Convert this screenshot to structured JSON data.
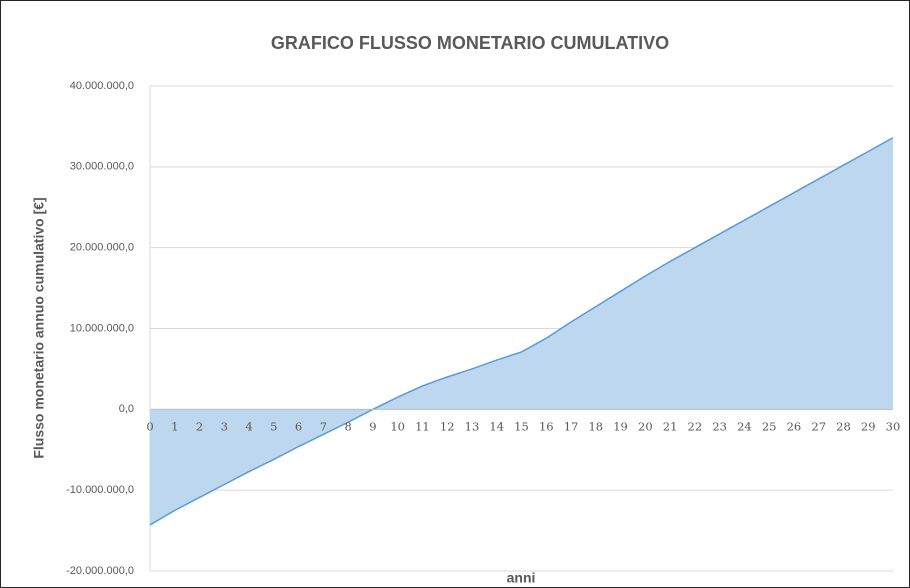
{
  "chart_data": {
    "type": "area",
    "title": "GRAFICO FLUSSO MONETARIO CUMULATIVO",
    "x_label": "anni",
    "y_label": "Flusso monetario annuo cumulativo [€]",
    "x": [
      0,
      1,
      2,
      3,
      4,
      5,
      6,
      7,
      8,
      9,
      10,
      11,
      12,
      13,
      14,
      15,
      16,
      17,
      18,
      19,
      20,
      21,
      22,
      23,
      24,
      25,
      26,
      27,
      28,
      29,
      30
    ],
    "values": [
      -14300000,
      -12500000,
      -10900000,
      -9300000,
      -7700000,
      -6200000,
      -4600000,
      -3100000,
      -1600000,
      0,
      1500000,
      2900000,
      4000000,
      5000000,
      6100000,
      7100000,
      8800000,
      10800000,
      12700000,
      14600000,
      16500000,
      18300000,
      20000000,
      21700000,
      23400000,
      25100000,
      26800000,
      28500000,
      30200000,
      31900000,
      33600000
    ],
    "color": "#bdd7ee",
    "line_color": "#5b9bd5",
    "xlim": [
      0,
      30
    ],
    "xticks": [
      0,
      1,
      2,
      3,
      4,
      5,
      6,
      7,
      8,
      9,
      10,
      11,
      12,
      13,
      14,
      15,
      16,
      17,
      18,
      19,
      20,
      21,
      22,
      23,
      24,
      25,
      26,
      27,
      28,
      29,
      30
    ],
    "ylim": [
      -20000000,
      40000000
    ],
    "yticks": [
      {
        "value": -20000000,
        "label": "-20.000.000,0"
      },
      {
        "value": -10000000,
        "label": "-10.000.000,0"
      },
      {
        "value": 0,
        "label": "0,0"
      },
      {
        "value": 10000000,
        "label": "10.000.000,0"
      },
      {
        "value": 20000000,
        "label": "20.000.000,0"
      },
      {
        "value": 30000000,
        "label": "30.000.000,0"
      },
      {
        "value": 40000000,
        "label": "40.000.000,0"
      }
    ],
    "grid": true
  }
}
